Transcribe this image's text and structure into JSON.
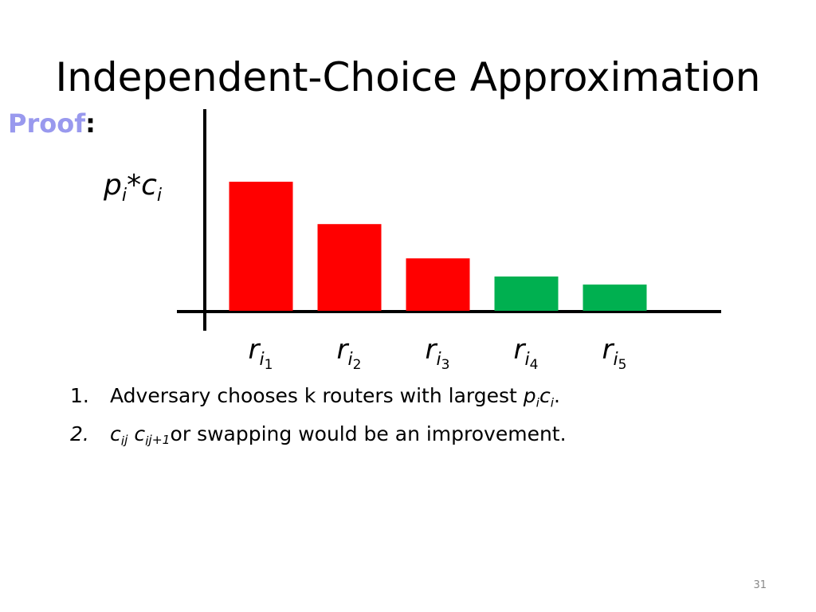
{
  "title": "Independent-Choice Approximation",
  "proof": {
    "word": "Proof",
    "colon": ":"
  },
  "chart_data": {
    "type": "bar",
    "y_label": [
      {
        "text": "p",
        "italic": true,
        "level": 0
      },
      {
        "text": "i",
        "italic": true,
        "level": 1
      },
      {
        "text": "*",
        "italic": false,
        "level": 0
      },
      {
        "text": "c",
        "italic": true,
        "level": 0
      },
      {
        "text": "i",
        "italic": true,
        "level": 1
      }
    ],
    "categories": [
      {
        "main": "r",
        "sub": "i",
        "subsub": "1"
      },
      {
        "main": "r",
        "sub": "i",
        "subsub": "2"
      },
      {
        "main": "r",
        "sub": "i",
        "subsub": "3"
      },
      {
        "main": "r",
        "sub": "i",
        "subsub": "4"
      },
      {
        "main": "r",
        "sub": "i",
        "subsub": "5"
      }
    ],
    "values": [
      64,
      43,
      26,
      17,
      13
    ],
    "colors": [
      "#ff0000",
      "#ff0000",
      "#ff0000",
      "#00b050",
      "#00b050"
    ],
    "ylim": [
      0,
      100
    ]
  },
  "list": [
    {
      "marker": "1.",
      "marker_italic": false,
      "runs": [
        {
          "text": "Adversary chooses k routers with largest ",
          "italic": false,
          "level": 0
        },
        {
          "text": "p",
          "italic": true,
          "level": 0
        },
        {
          "text": "i",
          "italic": true,
          "level": 1
        },
        {
          "text": "c",
          "italic": true,
          "level": 0
        },
        {
          "text": "i",
          "italic": true,
          "level": 1
        },
        {
          "text": ".",
          "italic": false,
          "level": 0
        }
      ]
    },
    {
      "marker": "2.",
      "marker_italic": true,
      "runs": [
        {
          "text": "c",
          "italic": true,
          "level": 0
        },
        {
          "text": "i",
          "italic": true,
          "level": 1
        },
        {
          "text": "j",
          "italic": true,
          "level": 2
        },
        {
          "text": "  c",
          "italic": true,
          "level": 0
        },
        {
          "text": "i",
          "italic": true,
          "level": 1
        },
        {
          "text": "j+1",
          "italic": true,
          "level": 2
        },
        {
          "text": "or swapping would be an improvement.",
          "italic": false,
          "level": 0
        }
      ]
    }
  ],
  "page_number": "31"
}
